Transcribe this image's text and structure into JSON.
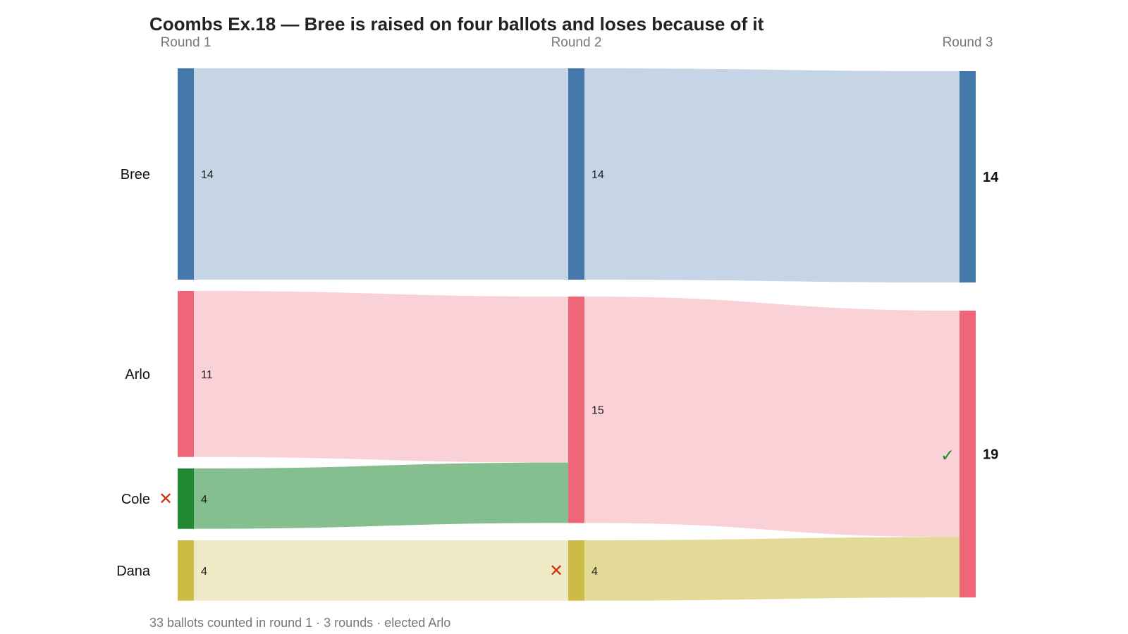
{
  "chart_data": {
    "type": "sankey",
    "title": "Coombs Ex.18 — Bree is raised on four ballots and loses because of it",
    "rounds": [
      "Round 1",
      "Round 2",
      "Round 3"
    ],
    "candidates": [
      {
        "name": "Bree",
        "color": "#4477aa",
        "light": "#c5d5e6",
        "values": [
          14,
          14,
          14
        ],
        "eliminated_round": null
      },
      {
        "name": "Arlo",
        "color": "#ee6677",
        "light": "#f9d1d6",
        "values": [
          11,
          15,
          19
        ],
        "eliminated_round": null,
        "winner": true
      },
      {
        "name": "Cole",
        "color": "#228833",
        "light": "#86bf8f",
        "values": [
          4,
          0,
          0
        ],
        "eliminated_round": 1
      },
      {
        "name": "Dana",
        "color": "#ccbb44",
        "light": "#efe9c6",
        "values": [
          4,
          4,
          0
        ],
        "eliminated_round": 2
      }
    ],
    "flows": [
      {
        "from_round": 1,
        "from": "Bree",
        "to": "Bree",
        "value": 14
      },
      {
        "from_round": 1,
        "from": "Arlo",
        "to": "Arlo",
        "value": 11
      },
      {
        "from_round": 1,
        "from": "Cole",
        "to": "Arlo",
        "value": 4
      },
      {
        "from_round": 1,
        "from": "Dana",
        "to": "Dana",
        "value": 4
      },
      {
        "from_round": 2,
        "from": "Bree",
        "to": "Bree",
        "value": 14
      },
      {
        "from_round": 2,
        "from": "Arlo",
        "to": "Arlo",
        "value": 15
      },
      {
        "from_round": 2,
        "from": "Dana",
        "to": "Arlo",
        "value": 4
      }
    ],
    "footer": "33 ballots counted in round 1 · 3 rounds · elected Arlo",
    "eliminated_mark": "✕",
    "winner_mark": "✓",
    "eliminated_color": "#cc3311",
    "winner_color": "#228833",
    "dana_transfer_color": "#e2da96"
  }
}
